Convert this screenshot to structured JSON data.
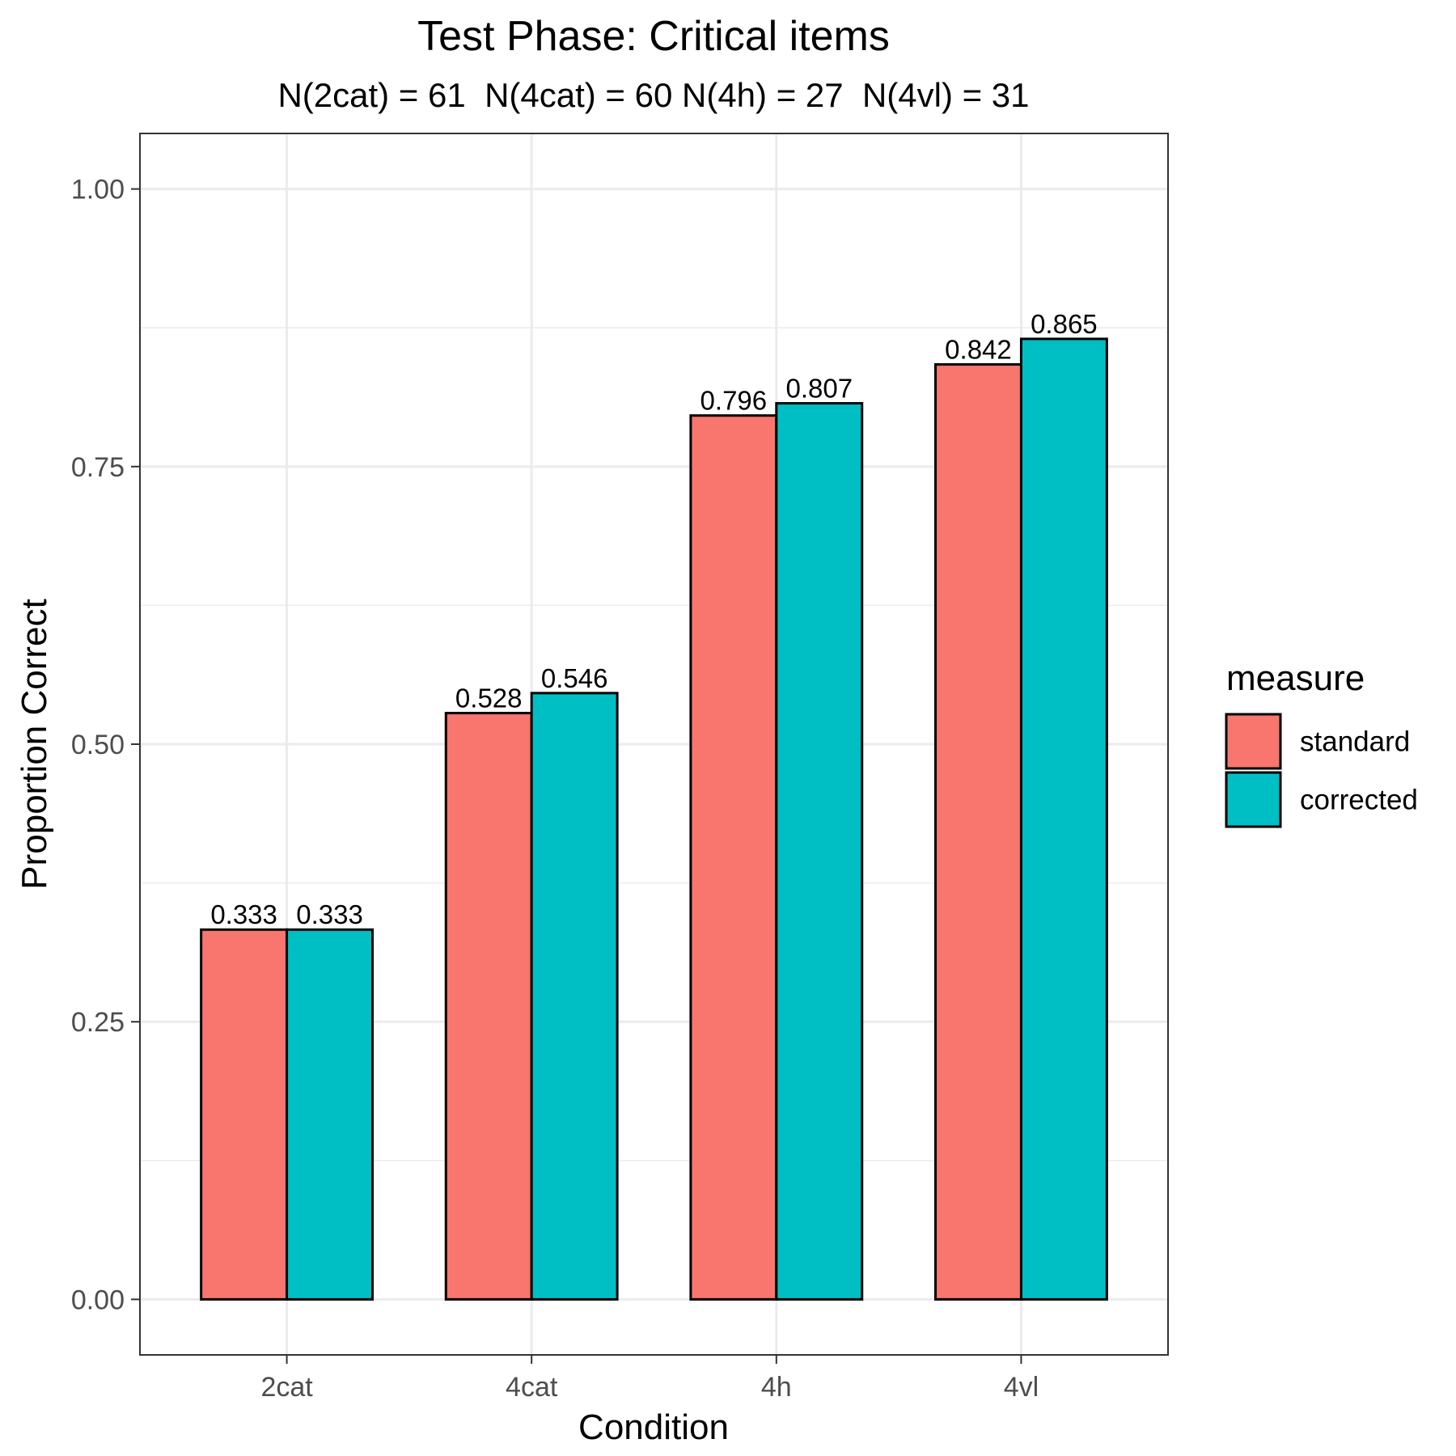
{
  "chart_data": {
    "type": "bar",
    "title": "Test Phase: Critical items",
    "subtitle": "N(2cat) = 61  N(4cat) = 60 N(4h) = 27  N(4vl) = 31",
    "xlabel": "Condition",
    "ylabel": "Proportion Correct",
    "categories": [
      "2cat",
      "4cat",
      "4h",
      "4vl"
    ],
    "ylim": [
      -0.05,
      1.05
    ],
    "yticks": [
      "0.00",
      "0.25",
      "0.50",
      "0.75",
      "1.00"
    ],
    "grid": true,
    "legend_position": "right",
    "legend_title": "measure",
    "series": [
      {
        "name": "standard",
        "color": "#F8766D",
        "values": [
          0.333,
          0.528,
          0.796,
          0.842
        ],
        "labels": [
          "0.333",
          "0.528",
          "0.796",
          "0.842"
        ]
      },
      {
        "name": "corrected",
        "color": "#00BFC4",
        "values": [
          0.333,
          0.546,
          0.807,
          0.865
        ],
        "labels": [
          "0.333",
          "0.546",
          "0.807",
          "0.865"
        ]
      }
    ]
  }
}
